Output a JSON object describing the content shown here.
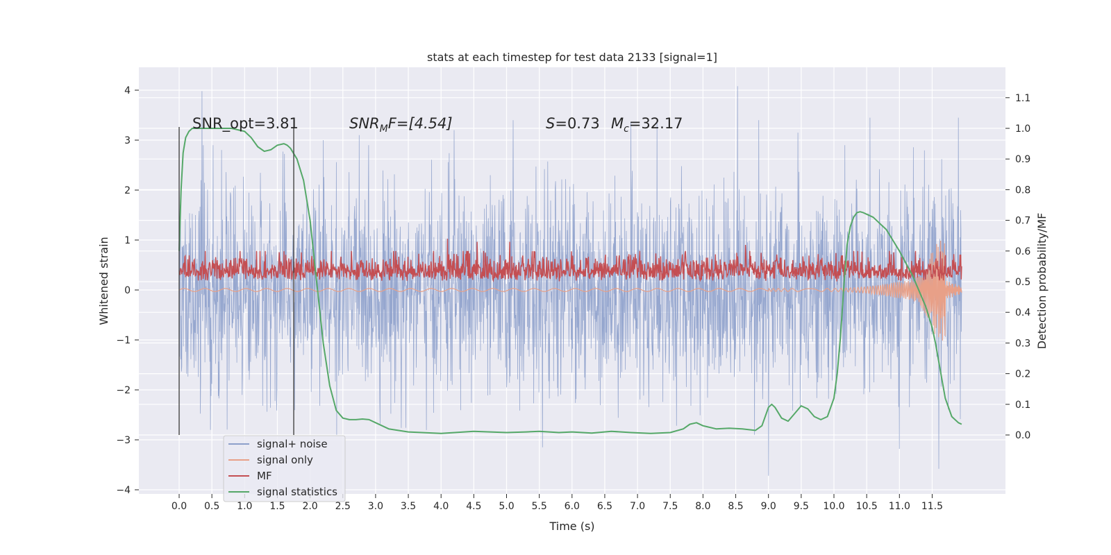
{
  "chart_data": {
    "type": "line",
    "title": "stats at each timestep for test data 2133 [signal=1]",
    "xlabel": "Time (s)",
    "ylabel_left": "Whitened strain",
    "ylabel_right": "Detection probability/MF",
    "xlim": [
      -0.6,
      12.5
    ],
    "ylim_left": [
      -4.2,
      4.5
    ],
    "ylim_right": [
      -0.2,
      1.2
    ],
    "x_ticks": [
      0.0,
      0.5,
      1.0,
      1.5,
      2.0,
      2.5,
      3.0,
      3.5,
      4.0,
      4.5,
      5.0,
      5.5,
      6.0,
      6.5,
      7.0,
      7.5,
      8.0,
      8.5,
      9.0,
      9.5,
      10.0,
      10.5,
      11.0,
      11.5
    ],
    "x_tick_labels": [
      "0.0",
      "0.5",
      "1.0",
      "1.5",
      "2.0",
      "2.5",
      "3.0",
      "3.5",
      "4.0",
      "4.5",
      "5.0",
      "5.5",
      "6.0",
      "6.5",
      "7.0",
      "7.5",
      "8.0",
      "8.5",
      "9.0",
      "9.5",
      "10.0",
      "10.5",
      "11.0",
      "11.5"
    ],
    "y_left_ticks": [
      4,
      3,
      2,
      1,
      0,
      -1,
      -2,
      -3,
      -4
    ],
    "y_left_tick_labels": [
      "4",
      "3",
      "2",
      "1",
      "0",
      "−1",
      "−2",
      "−3",
      "−4"
    ],
    "y_right_ticks": [
      1.1,
      1.0,
      0.9,
      0.8,
      0.7,
      0.6,
      0.5,
      0.4,
      0.3,
      0.2,
      0.1,
      0.0
    ],
    "y_right_tick_labels": [
      "1.1",
      "1.0",
      "0.9",
      "0.8",
      "0.7",
      "0.6",
      "0.5",
      "0.4",
      "0.3",
      "0.2",
      "0.1",
      "0.0"
    ],
    "grid": true,
    "background": "#eaeaf2",
    "legend_position": "lower-left",
    "annotations": {
      "snr_opt": "SNR_opt=3.81",
      "snr_mf_base": "SNR",
      "snr_mf_sub": "M",
      "snr_mf_rest": "F=[4.54]",
      "s_base": "S",
      "s_rest": "=0.73",
      "mc_base": "M",
      "mc_sub": "c",
      "mc_rest": "=32.17"
    },
    "vertical_markers": [
      0.0,
      1.75
    ],
    "series": [
      {
        "name": "signal+ noise",
        "color": "#8da0cb",
        "axis": "left",
        "x_range": [
          0.0,
          11.95
        ],
        "envelope_upper_typical": 2.0,
        "envelope_lower_typical": -2.0,
        "spikes": [
          [
            0.35,
            3.98
          ],
          [
            8.53,
            4.08
          ],
          [
            9.0,
            -3.72
          ],
          [
            11.6,
            -3.58
          ],
          [
            5.55,
            -3.15
          ],
          [
            11.0,
            -3.18
          ],
          [
            0.48,
            -2.8
          ],
          [
            2.75,
            3.1
          ],
          [
            4.2,
            3.2
          ],
          [
            6.9,
            3.35
          ],
          [
            10.55,
            3.45
          ],
          [
            11.9,
            3.45
          ],
          [
            7.3,
            3.4
          ],
          [
            5.1,
            3.4
          ],
          [
            2.2,
            3.0
          ],
          [
            9.45,
            3.15
          ],
          [
            8.85,
            3.4
          ]
        ]
      },
      {
        "name": "signal only",
        "color": "#e8a088",
        "axis": "left",
        "x_range": [
          0.0,
          11.95
        ],
        "chirp_peak_time": 11.65,
        "chirp_peak_values": [
          0.75,
          -0.9
        ]
      },
      {
        "name": "MF",
        "color": "#c44e52",
        "axis": "right",
        "x_range": [
          0.0,
          11.95
        ],
        "baseline": 0.5,
        "typical_max": 0.6,
        "spikes": [
          [
            4.1,
            0.64
          ],
          [
            4.55,
            0.63
          ],
          [
            5.05,
            0.63
          ],
          [
            8.65,
            0.62
          ],
          [
            0.4,
            0.6
          ],
          [
            10.85,
            0.6
          ]
        ]
      },
      {
        "name": "signal statistics",
        "color": "#55a868",
        "axis": "right",
        "x": [
          0.0,
          0.03,
          0.06,
          0.1,
          0.15,
          0.2,
          0.3,
          0.5,
          0.8,
          1.0,
          1.1,
          1.2,
          1.3,
          1.4,
          1.5,
          1.6,
          1.65,
          1.7,
          1.8,
          1.9,
          2.0,
          2.1,
          2.2,
          2.3,
          2.4,
          2.5,
          2.6,
          2.7,
          2.8,
          2.9,
          3.0,
          3.2,
          3.5,
          4.0,
          4.5,
          5.0,
          5.3,
          5.5,
          5.8,
          6.0,
          6.3,
          6.6,
          6.9,
          7.2,
          7.5,
          7.7,
          7.8,
          7.9,
          8.0,
          8.2,
          8.4,
          8.6,
          8.8,
          8.9,
          9.0,
          9.05,
          9.1,
          9.2,
          9.3,
          9.4,
          9.5,
          9.6,
          9.7,
          9.8,
          9.9,
          10.0,
          10.05,
          10.1,
          10.15,
          10.2,
          10.25,
          10.3,
          10.35,
          10.4,
          10.45,
          10.5,
          10.6,
          10.8,
          11.0,
          11.1,
          11.2,
          11.3,
          11.4,
          11.5,
          11.55,
          11.6,
          11.7,
          11.8,
          11.9,
          11.95
        ],
        "values": [
          0.6,
          0.8,
          0.92,
          0.97,
          0.99,
          1.0,
          1.0,
          1.0,
          1.0,
          0.99,
          0.97,
          0.94,
          0.925,
          0.93,
          0.945,
          0.95,
          0.945,
          0.935,
          0.9,
          0.83,
          0.7,
          0.5,
          0.3,
          0.16,
          0.08,
          0.055,
          0.05,
          0.05,
          0.052,
          0.05,
          0.04,
          0.02,
          0.01,
          0.005,
          0.012,
          0.008,
          0.01,
          0.012,
          0.008,
          0.01,
          0.006,
          0.012,
          0.008,
          0.005,
          0.008,
          0.02,
          0.035,
          0.04,
          0.03,
          0.02,
          0.022,
          0.02,
          0.015,
          0.03,
          0.09,
          0.1,
          0.09,
          0.055,
          0.045,
          0.07,
          0.095,
          0.085,
          0.06,
          0.05,
          0.06,
          0.12,
          0.2,
          0.32,
          0.48,
          0.62,
          0.68,
          0.71,
          0.725,
          0.728,
          0.725,
          0.72,
          0.71,
          0.67,
          0.6,
          0.56,
          0.52,
          0.47,
          0.42,
          0.35,
          0.3,
          0.24,
          0.12,
          0.06,
          0.04,
          0.035
        ]
      }
    ]
  }
}
